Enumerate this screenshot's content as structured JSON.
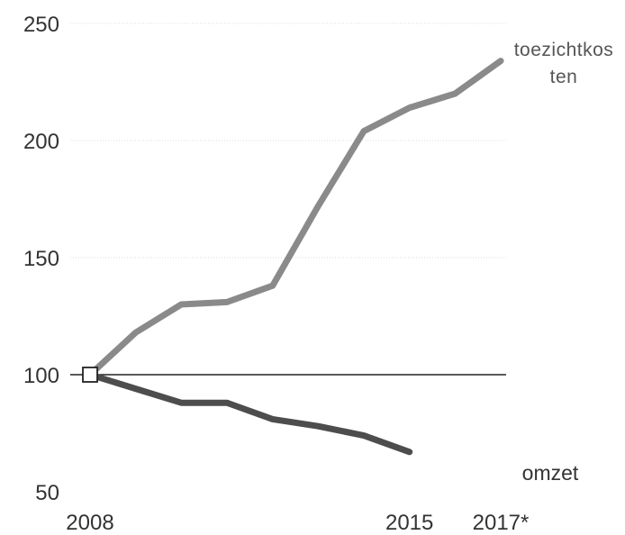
{
  "chart_data": {
    "type": "line",
    "xlabel": "",
    "ylabel": "",
    "xlim": [
      2008,
      2017
    ],
    "ylim": [
      50,
      250
    ],
    "y_ticks": [
      250,
      200,
      150,
      100,
      50
    ],
    "x_tick_labels": [
      {
        "x": 2008,
        "label": "2008"
      },
      {
        "x": 2015,
        "label": "2015"
      },
      {
        "x": 2017,
        "label": "2017*"
      }
    ],
    "grid": true,
    "baseline": 100,
    "series": [
      {
        "name": "toezichtkosten",
        "label_lines": [
          "toezichtkos",
          "ten"
        ],
        "color": "#8a8a8a",
        "x": [
          2008,
          2009,
          2010,
          2011,
          2012,
          2013,
          2014,
          2015,
          2016,
          2017
        ],
        "values": [
          100,
          118,
          130,
          131,
          138,
          172,
          204,
          214,
          220,
          234
        ]
      },
      {
        "name": "omzet",
        "label_lines": [
          "omzet"
        ],
        "color": "#4d4d4d",
        "x": [
          2008,
          2009,
          2010,
          2011,
          2012,
          2013,
          2014,
          2015
        ],
        "values": [
          100,
          94,
          88,
          88,
          81,
          78,
          74,
          67
        ]
      }
    ]
  }
}
